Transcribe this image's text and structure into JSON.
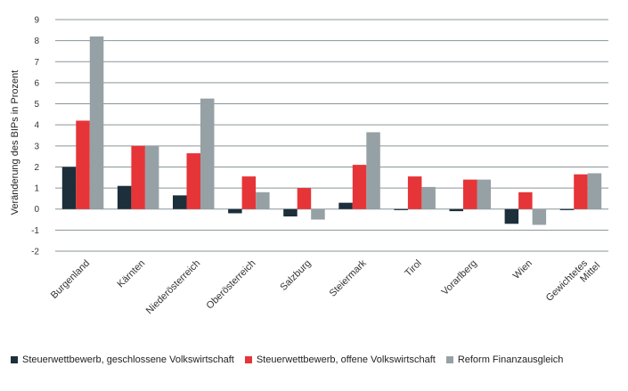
{
  "chart_data": {
    "type": "bar",
    "ylabel": "Veränderung des BIPs in Prozent",
    "ylim": [
      -2,
      9
    ],
    "yticks": [
      -2,
      -1,
      0,
      1,
      2,
      3,
      4,
      5,
      6,
      7,
      8,
      9
    ],
    "grid": true,
    "legend_position": "bottom",
    "categories": [
      "Burgenland",
      "Kärnten",
      "Niederösterreich",
      "Oberösterreich",
      "Salzburg",
      "Steiermark",
      "Tirol",
      "Vorarlberg",
      "Wien",
      "Gewichtetes Mittel"
    ],
    "series": [
      {
        "name": "Steuerwettbewerb, geschlossene Volkswirtschaft",
        "color": "#1c2f3a",
        "values": [
          2.0,
          1.1,
          0.65,
          -0.2,
          -0.35,
          0.3,
          -0.05,
          -0.1,
          -0.7,
          -0.05
        ]
      },
      {
        "name": "Steuerwettbewerb, offene Volkswirtschaft",
        "color": "#e63538",
        "values": [
          4.2,
          3.0,
          2.65,
          1.55,
          1.0,
          2.1,
          1.55,
          1.4,
          0.8,
          1.65
        ]
      },
      {
        "name": "Reform Finanzausgleich",
        "color": "#96a1a5",
        "values": [
          8.2,
          3.0,
          5.25,
          0.8,
          -0.5,
          3.65,
          1.05,
          1.4,
          -0.75,
          1.7
        ]
      }
    ]
  }
}
